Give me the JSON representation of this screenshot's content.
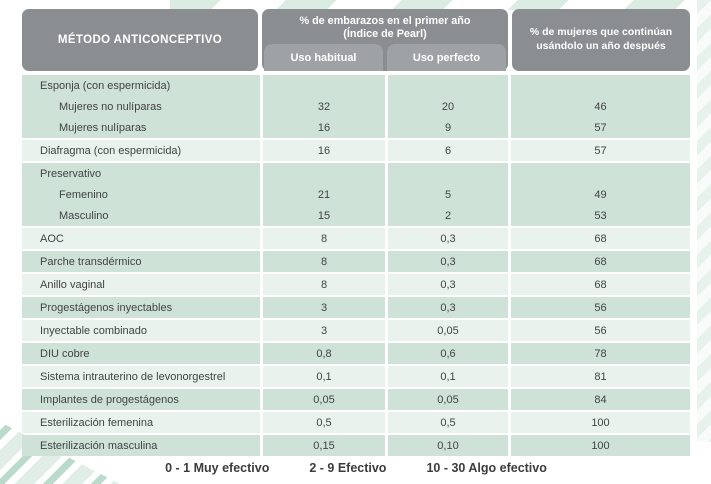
{
  "header": {
    "method": "MÉTODO ANTICONCEPTIVO",
    "pearl_title": "% de embarazos en el primer año (Índice de Pearl)",
    "sub_habitual": "Uso habitual",
    "sub_perfecto": "Uso perfecto",
    "continuation": "% de mujeres que continúan usándolo un año después"
  },
  "table": {
    "bands": [
      {
        "tone": "green",
        "rows": [
          {
            "label": "Esponja (con espermicida)",
            "indent": false,
            "habitual": "",
            "perfecto": "",
            "continua": ""
          },
          {
            "label": "Mujeres no nulíparas",
            "indent": true,
            "habitual": "32",
            "perfecto": "20",
            "continua": "46"
          },
          {
            "label": "Mujeres nulíparas",
            "indent": true,
            "habitual": "16",
            "perfecto": "9",
            "continua": "57"
          }
        ]
      },
      {
        "tone": "light",
        "rows": [
          {
            "label": "Diafragma (con espermicida)",
            "indent": false,
            "habitual": "16",
            "perfecto": "6",
            "continua": "57"
          }
        ]
      },
      {
        "tone": "green",
        "rows": [
          {
            "label": "Preservativo",
            "indent": false,
            "habitual": "",
            "perfecto": "",
            "continua": ""
          },
          {
            "label": "Femenino",
            "indent": true,
            "habitual": "21",
            "perfecto": "5",
            "continua": "49"
          },
          {
            "label": "Masculino",
            "indent": true,
            "habitual": "15",
            "perfecto": "2",
            "continua": "53"
          }
        ]
      },
      {
        "tone": "light",
        "rows": [
          {
            "label": "AOC",
            "indent": false,
            "habitual": "8",
            "perfecto": "0,3",
            "continua": "68"
          }
        ]
      },
      {
        "tone": "green",
        "rows": [
          {
            "label": "Parche transdérmico",
            "indent": false,
            "habitual": "8",
            "perfecto": "0,3",
            "continua": "68"
          }
        ]
      },
      {
        "tone": "light",
        "rows": [
          {
            "label": "Anillo vaginal",
            "indent": false,
            "habitual": "8",
            "perfecto": "0,3",
            "continua": "68"
          }
        ]
      },
      {
        "tone": "green",
        "rows": [
          {
            "label": "Progestágenos inyectables",
            "indent": false,
            "habitual": "3",
            "perfecto": "0,3",
            "continua": "56"
          }
        ]
      },
      {
        "tone": "light",
        "rows": [
          {
            "label": "Inyectable combinado",
            "indent": false,
            "habitual": "3",
            "perfecto": "0,05",
            "continua": "56"
          }
        ]
      },
      {
        "tone": "green",
        "rows": [
          {
            "label": "DIU cobre",
            "indent": false,
            "habitual": "0,8",
            "perfecto": "0,6",
            "continua": "78"
          }
        ]
      },
      {
        "tone": "light",
        "rows": [
          {
            "label": "Sistema intrauterino de levonorgestrel",
            "indent": false,
            "habitual": "0,1",
            "perfecto": "0,1",
            "continua": "81"
          }
        ]
      },
      {
        "tone": "green",
        "rows": [
          {
            "label": "Implantes de progestágenos",
            "indent": false,
            "habitual": "0,05",
            "perfecto": "0,05",
            "continua": "84"
          }
        ]
      },
      {
        "tone": "light",
        "rows": [
          {
            "label": "Esterilización femenina",
            "indent": false,
            "habitual": "0,5",
            "perfecto": "0,5",
            "continua": "100"
          }
        ]
      },
      {
        "tone": "green",
        "rows": [
          {
            "label": "Esterilización masculina",
            "indent": false,
            "habitual": "0,15",
            "perfecto": "0,10",
            "continua": "100"
          }
        ]
      }
    ]
  },
  "legend": {
    "items": [
      "0 - 1 Muy efectivo",
      "2 - 9 Efectivo",
      "10 - 30 Algo efectivo"
    ]
  },
  "colors": {
    "header_bg": "#8b8e90",
    "subheader_bg": "#9fa2a4",
    "row_green": "#cfe2d8",
    "row_light": "#e9f2ed",
    "body_text": "#414344",
    "header_text": "#ffffff",
    "stripe_accent": "#aed3c2"
  }
}
